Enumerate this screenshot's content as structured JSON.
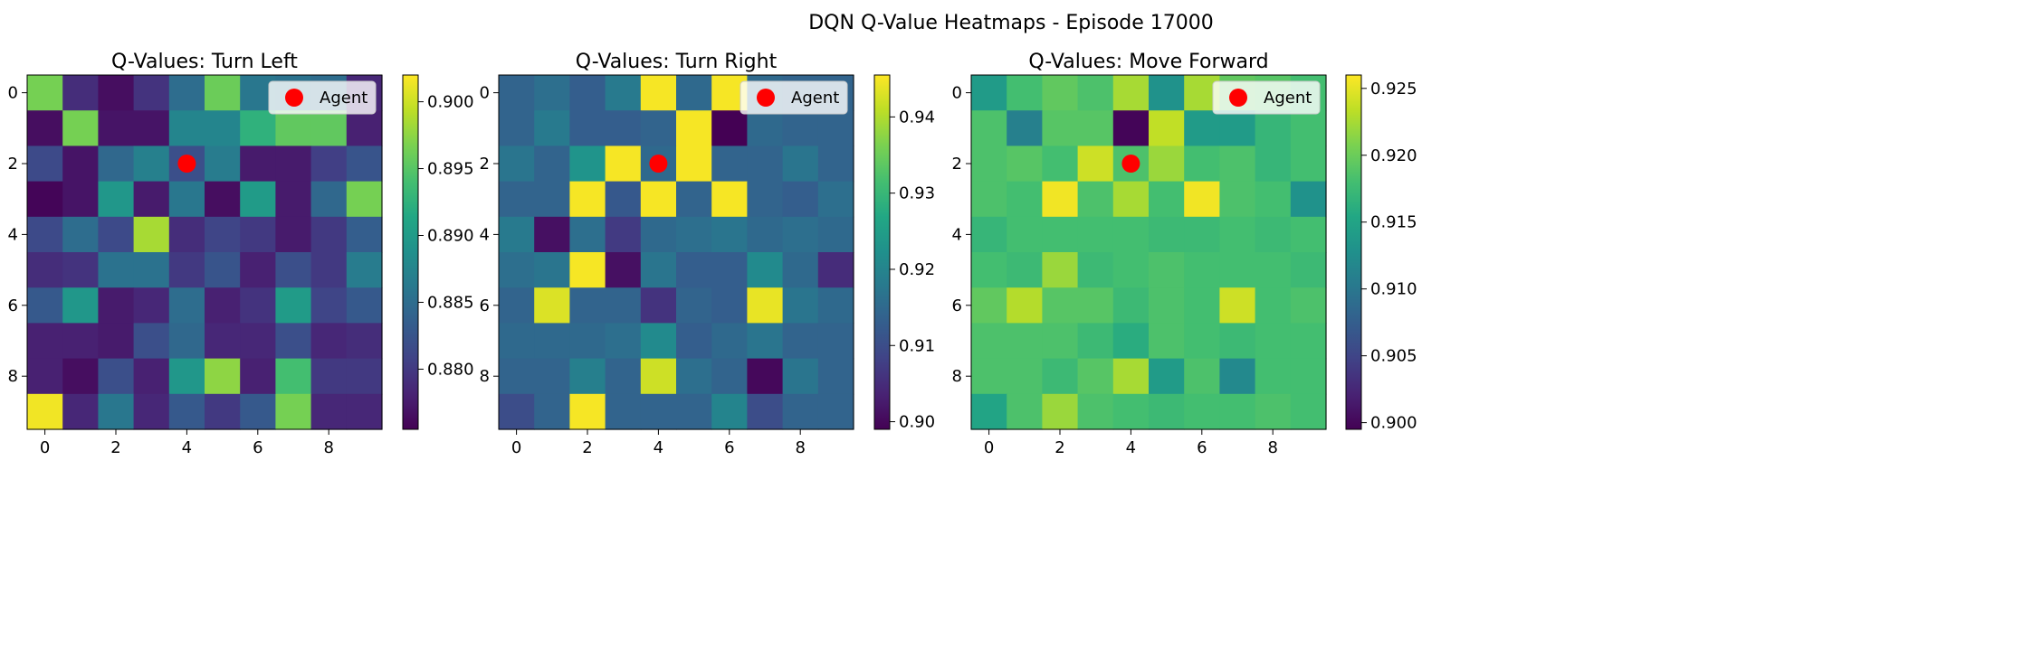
{
  "figure": {
    "title": "DQN Q-Value Heatmaps - Episode 17000"
  },
  "chart_data": [
    {
      "type": "heatmap",
      "title": "Q-Values: Turn Left",
      "colormap": "viridis",
      "vmin": 0.8755,
      "vmax": 0.902,
      "colorbar_ticks": [
        "0.880",
        "0.885",
        "0.890",
        "0.895",
        "0.900"
      ],
      "x_ticks": [
        "0",
        "2",
        "4",
        "6",
        "8"
      ],
      "y_ticks": [
        "0",
        "2",
        "4",
        "6",
        "8"
      ],
      "agent": {
        "row": 2,
        "col": 4,
        "color": "#ff0000"
      },
      "legend": {
        "label": "Agent",
        "placement": "upper right"
      },
      "values": [
        [
          0.8965,
          0.879,
          0.8765,
          0.8795,
          0.885,
          0.896,
          0.886,
          0.8855,
          0.885,
          0.8785
        ],
        [
          0.8765,
          0.8965,
          0.877,
          0.877,
          0.8875,
          0.8875,
          0.8925,
          0.8955,
          0.8955,
          0.878
        ],
        [
          0.8815,
          0.877,
          0.8845,
          0.887,
          0.882,
          0.8865,
          0.8775,
          0.8775,
          0.8805,
          0.8825
        ],
        [
          0.8758,
          0.877,
          0.8895,
          0.8775,
          0.886,
          0.8765,
          0.89,
          0.8775,
          0.8845,
          0.8965
        ],
        [
          0.8815,
          0.885,
          0.8815,
          0.8985,
          0.879,
          0.881,
          0.88,
          0.8775,
          0.88,
          0.8835
        ],
        [
          0.879,
          0.8795,
          0.8855,
          0.8855,
          0.88,
          0.8825,
          0.878,
          0.882,
          0.88,
          0.8865
        ],
        [
          0.883,
          0.8895,
          0.8775,
          0.8785,
          0.885,
          0.878,
          0.8795,
          0.89,
          0.881,
          0.883
        ],
        [
          0.878,
          0.878,
          0.8775,
          0.882,
          0.8845,
          0.8785,
          0.8785,
          0.882,
          0.8785,
          0.879
        ],
        [
          0.878,
          0.8765,
          0.882,
          0.878,
          0.8895,
          0.8975,
          0.878,
          0.894,
          0.88,
          0.88
        ],
        [
          0.9015,
          0.8785,
          0.886,
          0.8785,
          0.883,
          0.88,
          0.883,
          0.8965,
          0.8785,
          0.8785
        ]
      ]
    },
    {
      "type": "heatmap",
      "title": "Q-Values: Turn Right",
      "colormap": "viridis",
      "vmin": 0.899,
      "vmax": 0.9455,
      "colorbar_ticks": [
        "0.90",
        "0.91",
        "0.92",
        "0.93",
        "0.94"
      ],
      "x_ticks": [
        "0",
        "2",
        "4",
        "6",
        "8"
      ],
      "y_ticks": [
        "0",
        "2",
        "4",
        "6",
        "8"
      ],
      "agent": {
        "row": 2,
        "col": 4,
        "color": "#ff0000"
      },
      "legend": {
        "label": "Agent",
        "placement": "upper right"
      },
      "values": [
        [
          0.914,
          0.916,
          0.913,
          0.918,
          0.945,
          0.915,
          0.945,
          0.915,
          0.914,
          0.914
        ],
        [
          0.914,
          0.918,
          0.913,
          0.913,
          0.914,
          0.945,
          0.899,
          0.915,
          0.914,
          0.914
        ],
        [
          0.917,
          0.914,
          0.923,
          0.945,
          0.915,
          0.945,
          0.914,
          0.914,
          0.917,
          0.914
        ],
        [
          0.914,
          0.914,
          0.945,
          0.912,
          0.945,
          0.914,
          0.945,
          0.914,
          0.913,
          0.916
        ],
        [
          0.918,
          0.901,
          0.916,
          0.907,
          0.915,
          0.916,
          0.917,
          0.915,
          0.916,
          0.915
        ],
        [
          0.916,
          0.917,
          0.945,
          0.901,
          0.917,
          0.913,
          0.913,
          0.921,
          0.915,
          0.905
        ],
        [
          0.914,
          0.943,
          0.914,
          0.914,
          0.906,
          0.914,
          0.913,
          0.944,
          0.917,
          0.915
        ],
        [
          0.915,
          0.915,
          0.915,
          0.916,
          0.921,
          0.913,
          0.915,
          0.917,
          0.914,
          0.914
        ],
        [
          0.914,
          0.914,
          0.919,
          0.914,
          0.942,
          0.916,
          0.914,
          0.9,
          0.917,
          0.914
        ],
        [
          0.91,
          0.914,
          0.945,
          0.914,
          0.914,
          0.914,
          0.92,
          0.91,
          0.914,
          0.914
        ]
      ]
    },
    {
      "type": "heatmap",
      "title": "Q-Values: Move Forward",
      "colormap": "viridis",
      "vmin": 0.8995,
      "vmax": 0.926,
      "colorbar_ticks": [
        "0.900",
        "0.905",
        "0.910",
        "0.915",
        "0.920",
        "0.925"
      ],
      "x_ticks": [
        "0",
        "2",
        "4",
        "6",
        "8"
      ],
      "y_ticks": [
        "0",
        "2",
        "4",
        "6",
        "8"
      ],
      "agent": {
        "row": 2,
        "col": 4,
        "color": "#ff0000"
      },
      "legend": {
        "label": "Agent",
        "placement": "upper right"
      },
      "values": [
        [
          0.914,
          0.918,
          0.9195,
          0.9185,
          0.9225,
          0.913,
          0.9225,
          0.9195,
          0.919,
          0.918
        ],
        [
          0.9185,
          0.911,
          0.919,
          0.919,
          0.8998,
          0.9235,
          0.914,
          0.914,
          0.917,
          0.918
        ],
        [
          0.9185,
          0.919,
          0.918,
          0.924,
          0.9185,
          0.922,
          0.918,
          0.9185,
          0.917,
          0.918
        ],
        [
          0.9185,
          0.918,
          0.9255,
          0.9185,
          0.9225,
          0.918,
          0.9255,
          0.9185,
          0.918,
          0.913
        ],
        [
          0.917,
          0.918,
          0.918,
          0.918,
          0.918,
          0.9175,
          0.9175,
          0.918,
          0.9175,
          0.918
        ],
        [
          0.918,
          0.9175,
          0.922,
          0.9175,
          0.918,
          0.9185,
          0.918,
          0.918,
          0.918,
          0.9175
        ],
        [
          0.9195,
          0.923,
          0.919,
          0.919,
          0.9175,
          0.9185,
          0.918,
          0.924,
          0.918,
          0.9185
        ],
        [
          0.9185,
          0.9185,
          0.9185,
          0.9175,
          0.916,
          0.9185,
          0.918,
          0.9175,
          0.918,
          0.918
        ],
        [
          0.9185,
          0.9185,
          0.9175,
          0.919,
          0.9225,
          0.914,
          0.9185,
          0.912,
          0.918,
          0.918
        ],
        [
          0.915,
          0.9185,
          0.922,
          0.9185,
          0.918,
          0.9175,
          0.918,
          0.918,
          0.9185,
          0.918
        ]
      ]
    }
  ]
}
